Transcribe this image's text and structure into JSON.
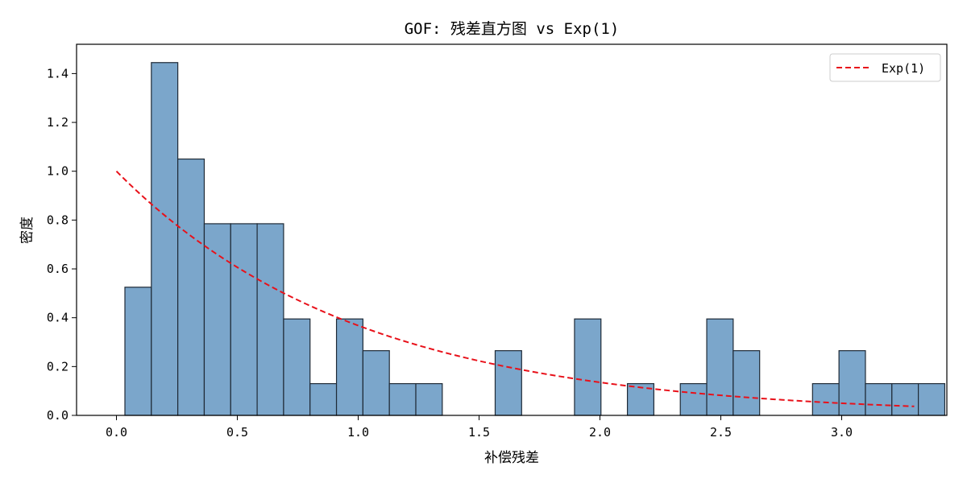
{
  "chart_data": {
    "type": "bar",
    "title": "GOF: 残差直方图 vs Exp(1)",
    "xlabel": "补偿残差",
    "ylabel": "密度",
    "xlim": [
      -0.165,
      3.435
    ],
    "ylim": [
      0,
      1.52
    ],
    "xticks": [
      "0.0",
      "0.5",
      "1.0",
      "1.5",
      "2.0",
      "2.5",
      "3.0"
    ],
    "xtick_values": [
      0,
      0.5,
      1.0,
      1.5,
      2.0,
      2.5,
      3.0
    ],
    "yticks": [
      "0.0",
      "0.2",
      "0.4",
      "0.6",
      "0.8",
      "1.0",
      "1.2",
      "1.4"
    ],
    "ytick_values": [
      0,
      0.2,
      0.4,
      0.6,
      0.8,
      1.0,
      1.2,
      1.4
    ],
    "grid": false,
    "legend_position": "top-right",
    "histogram": {
      "name": "残差",
      "bin_start": 0.035,
      "bin_width": 0.1094,
      "values": [
        0.525,
        1.445,
        1.05,
        0.785,
        0.785,
        0.785,
        0.395,
        0.13,
        0.395,
        0.265,
        0.13,
        0.13,
        0,
        0,
        0.265,
        0,
        0,
        0.395,
        0,
        0.13,
        0,
        0.13,
        0.395,
        0.265,
        0,
        0,
        0.13,
        0.265,
        0.13,
        0.13,
        0.13
      ],
      "fill": "#7ba6cb",
      "edge": "#1f2a36"
    },
    "series": [
      {
        "name": "Exp(1)",
        "function": "exp(-x)",
        "x_range": [
          0,
          3.3
        ],
        "color": "#e8111a",
        "style": "dashed"
      }
    ]
  }
}
